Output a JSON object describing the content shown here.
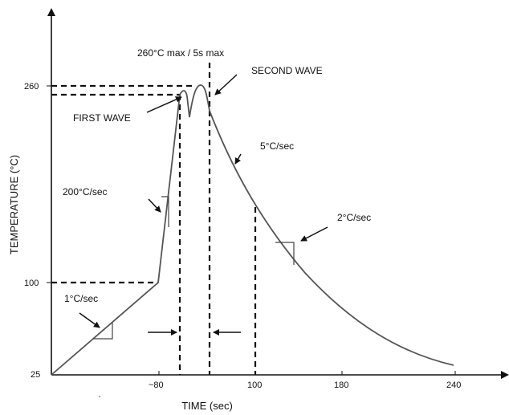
{
  "diagram": {
    "axes": {
      "xlabel": "TIME (sec)",
      "ylabel": "TEMPERATURE (°C)",
      "yticks": [
        "260",
        "100",
        "25"
      ],
      "xticks": [
        "~80",
        "100",
        "180",
        "240"
      ]
    },
    "annotations": {
      "peak_limit": "260°C max / 5s max",
      "second_wave": "SECOND WAVE",
      "first_wave": "FIRST WAVE",
      "rate_cooling": "5°C/sec",
      "rate_ramp": "200°C/sec",
      "rate_preheat": "1°C/sec",
      "rate_slow_cooling": "2°C/sec"
    },
    "colors": {
      "profile_line": "#555555",
      "guide_lines": "#111111"
    }
  }
}
